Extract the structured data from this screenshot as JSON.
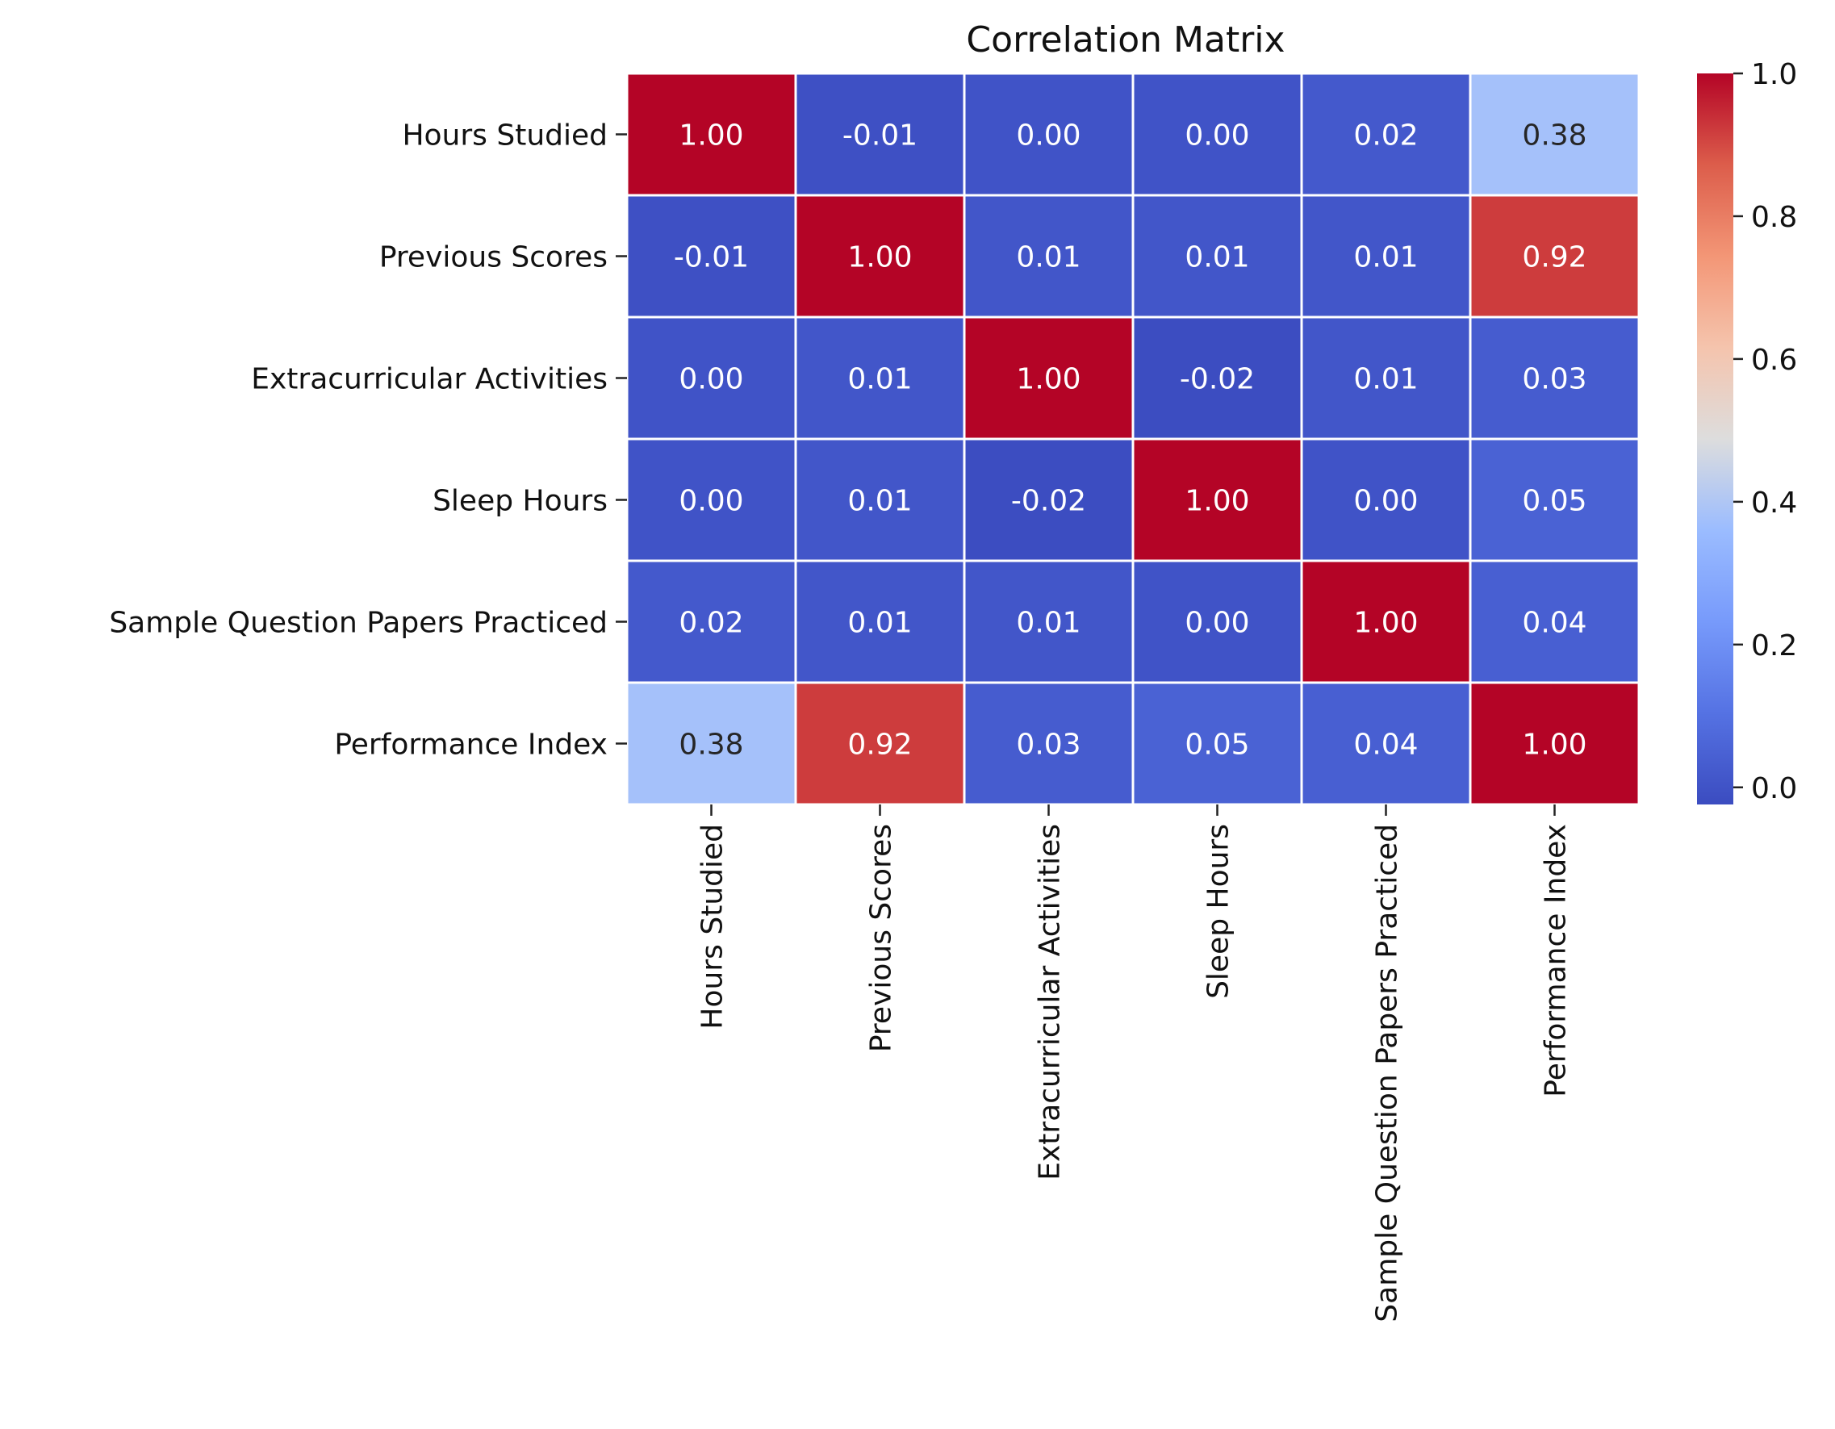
{
  "chart_data": {
    "type": "heatmap",
    "title": "Correlation Matrix",
    "row_labels": [
      "Hours Studied",
      "Previous Scores",
      "Extracurricular Activities",
      "Sleep Hours",
      "Sample Question Papers Practiced",
      "Performance Index"
    ],
    "col_labels": [
      "Hours Studied",
      "Previous Scores",
      "Extracurricular Activities",
      "Sleep Hours",
      "Sample Question Papers Practiced",
      "Performance Index"
    ],
    "values": [
      [
        1.0,
        -0.01,
        0.0,
        0.0,
        0.02,
        0.38
      ],
      [
        -0.01,
        1.0,
        0.01,
        0.01,
        0.01,
        0.92
      ],
      [
        0.0,
        0.01,
        1.0,
        -0.02,
        0.01,
        0.03
      ],
      [
        0.0,
        0.01,
        -0.02,
        1.0,
        0.0,
        0.05
      ],
      [
        0.02,
        0.01,
        0.01,
        0.0,
        1.0,
        0.04
      ],
      [
        0.38,
        0.92,
        0.03,
        0.05,
        0.04,
        1.0
      ]
    ],
    "cell_labels": [
      [
        "1.00",
        "-0.01",
        "0.00",
        "0.00",
        "0.02",
        "0.38"
      ],
      [
        "-0.01",
        "1.00",
        "0.01",
        "0.01",
        "0.01",
        "0.92"
      ],
      [
        "0.00",
        "0.01",
        "1.00",
        "-0.02",
        "0.01",
        "0.03"
      ],
      [
        "0.00",
        "0.01",
        "-0.02",
        "1.00",
        "0.00",
        "0.05"
      ],
      [
        "0.02",
        "0.01",
        "0.01",
        "0.00",
        "1.00",
        "0.04"
      ],
      [
        "0.38",
        "0.92",
        "0.03",
        "0.05",
        "0.04",
        "1.00"
      ]
    ],
    "colormap": "coolwarm",
    "colorbar": {
      "range": [
        -0.024,
        1.0
      ],
      "ticks": [
        0.0,
        0.2,
        0.4,
        0.6,
        0.8,
        1.0
      ],
      "tick_labels": [
        "0.0",
        "0.2",
        "0.4",
        "0.6",
        "0.8",
        "1.0"
      ]
    },
    "xlabel": "",
    "ylabel": ""
  }
}
